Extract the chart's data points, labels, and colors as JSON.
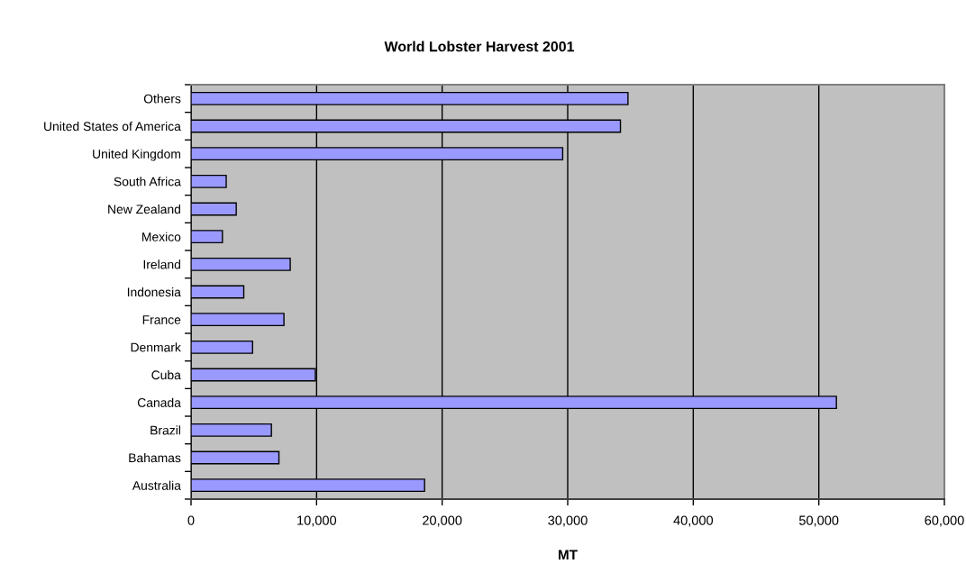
{
  "chart_data": {
    "type": "bar",
    "orientation": "horizontal",
    "title": "World Lobster Harvest 2001",
    "xlabel": "MT",
    "categories": [
      "Others",
      "United States of America",
      "United Kingdom",
      "South Africa",
      "New Zealand",
      "Mexico",
      "Ireland",
      "Indonesia",
      "France",
      "Denmark",
      "Cuba",
      "Canada",
      "Brazil",
      "Bahamas",
      "Australia"
    ],
    "values": [
      34800,
      34200,
      29600,
      2800,
      3600,
      2500,
      7900,
      4200,
      7400,
      4900,
      9900,
      51400,
      6400,
      7000,
      18600
    ],
    "color": "#9999ff",
    "xlim": [
      0,
      60000
    ],
    "xticks": [
      0,
      {
        "value": 10000,
        "label": "10,000"
      },
      {
        "value": 20000,
        "label": "20,000"
      },
      {
        "value": 30000,
        "label": "30,000"
      },
      {
        "value": 40000,
        "label": "40,000"
      },
      {
        "value": 50000,
        "label": "50,000"
      },
      {
        "value": 60000,
        "label": "60,000"
      }
    ],
    "grid": "x"
  }
}
